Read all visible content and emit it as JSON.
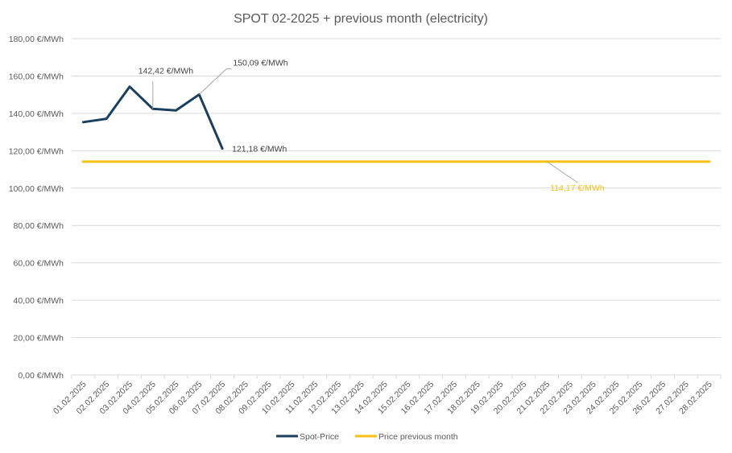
{
  "chart_data": {
    "type": "line",
    "title": "SPOT 02-2025 + previous month (electricity)",
    "xlabel": "",
    "ylabel": "",
    "ylim": [
      0,
      180
    ],
    "y_step": 20,
    "y_unit_suffix": " €/MWh",
    "grid": true,
    "legend_position": "bottom",
    "categories": [
      "01.02.2025",
      "02.02.2025",
      "03.02.2025",
      "04.02.2025",
      "05.02.2025",
      "06.02.2025",
      "07.02.2025",
      "08.02.2025",
      "09.02.2025",
      "10.02.2025",
      "11.02.2025",
      "12.02.2025",
      "13.02.2025",
      "14.02.2025",
      "15.02.2025",
      "16.02.2025",
      "17.02.2025",
      "18.02.2025",
      "19.02.2025",
      "20.02.2025",
      "21.02.2025",
      "22.02.2025",
      "23.02.2025",
      "24.02.2025",
      "25.02.2025",
      "26.02.2025",
      "27.02.2025",
      "28.02.2025"
    ],
    "y_tick_labels": [
      "0,00 €/MWh",
      "20,00 €/MWh",
      "40,00 €/MWh",
      "60,00 €/MWh",
      "80,00 €/MWh",
      "100,00 €/MWh",
      "120,00 €/MWh",
      "140,00 €/MWh",
      "160,00 €/MWh",
      "180,00 €/MWh"
    ],
    "series": [
      {
        "name": "Spot-Price",
        "color": "#1b3f5e",
        "values": [
          135.3,
          137.1,
          154.3,
          142.42,
          141.6,
          150.09,
          121.18,
          null,
          null,
          null,
          null,
          null,
          null,
          null,
          null,
          null,
          null,
          null,
          null,
          null,
          null,
          null,
          null,
          null,
          null,
          null,
          null,
          null
        ]
      },
      {
        "name": "Price previous month",
        "color": "#f5c213",
        "values": [
          114.17,
          114.17,
          114.17,
          114.17,
          114.17,
          114.17,
          114.17,
          114.17,
          114.17,
          114.17,
          114.17,
          114.17,
          114.17,
          114.17,
          114.17,
          114.17,
          114.17,
          114.17,
          114.17,
          114.17,
          114.17,
          114.17,
          114.17,
          114.17,
          114.17,
          114.17,
          114.17,
          114.17
        ]
      }
    ],
    "annotations": [
      {
        "series": 0,
        "index": 3,
        "text": "142,42 €/MWh"
      },
      {
        "series": 0,
        "index": 5,
        "text": "150,09 €/MWh"
      },
      {
        "series": 0,
        "index": 6,
        "text": "121,18 €/MWh"
      },
      {
        "series": 1,
        "index": 20,
        "text": "114,17 €/MWh"
      }
    ]
  }
}
